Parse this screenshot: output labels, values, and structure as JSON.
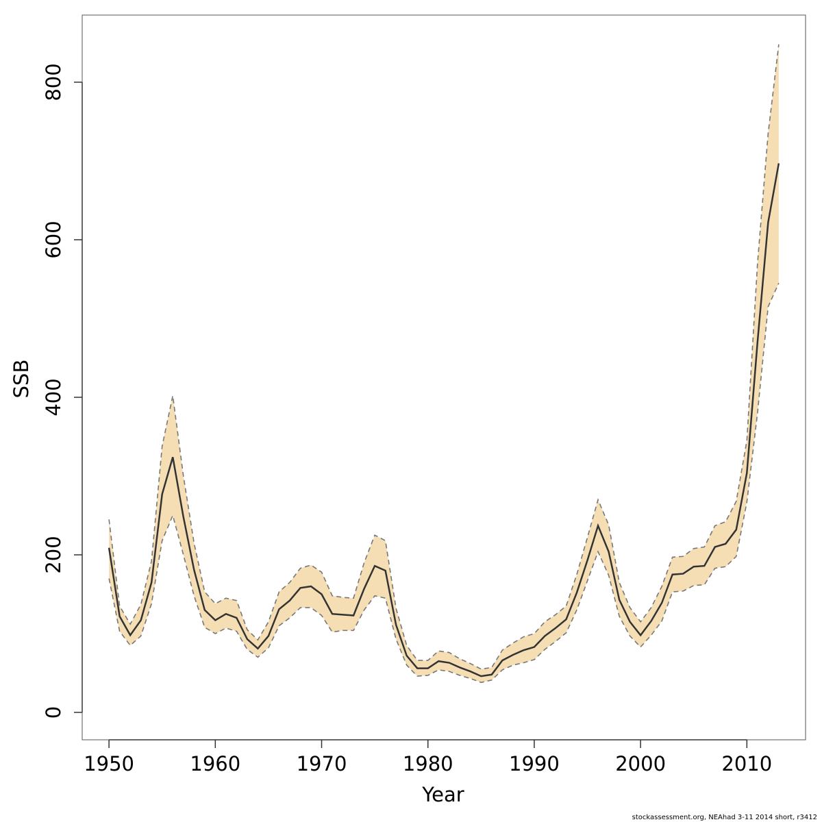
{
  "chart_data": {
    "type": "line",
    "xlabel": "Year",
    "ylabel": "SSB",
    "footer": "stockassessment.org, NEAhad 3-11 2014 short, r3412",
    "x": [
      1950,
      1951,
      1952,
      1953,
      1954,
      1955,
      1956,
      1957,
      1958,
      1959,
      1960,
      1961,
      1962,
      1963,
      1964,
      1965,
      1966,
      1967,
      1968,
      1969,
      1970,
      1971,
      1972,
      1973,
      1974,
      1975,
      1976,
      1977,
      1978,
      1979,
      1980,
      1981,
      1982,
      1983,
      1984,
      1985,
      1986,
      1987,
      1988,
      1989,
      1990,
      1991,
      1992,
      1993,
      1994,
      1995,
      1996,
      1997,
      1998,
      1999,
      2000,
      2001,
      2002,
      2003,
      2004,
      2005,
      2006,
      2007,
      2008,
      2009,
      2010,
      2011,
      2012,
      2013
    ],
    "series": [
      {
        "color": "#333333",
        "line_style": "solid",
        "values": [
          209,
          122,
          98,
          117,
          165,
          277,
          324,
          248,
          181,
          130,
          117,
          125,
          120,
          93,
          81,
          97,
          131,
          142,
          158,
          160,
          150,
          125,
          124,
          123,
          157,
          186,
          180,
          111,
          72,
          56,
          56,
          65,
          63,
          57,
          52,
          46,
          48,
          66,
          73,
          79,
          83,
          97,
          107,
          118,
          152,
          193,
          237,
          204,
          143,
          115,
          98,
          116,
          139,
          175,
          176,
          185,
          186,
          210,
          214,
          232,
          304,
          470,
          622,
          697
        ]
      },
      {
        "color": "#777777",
        "line_style": "dashed",
        "values": [
          170,
          103,
          85,
          97,
          138,
          218,
          250,
          200,
          148,
          108,
          100,
          107,
          103,
          80,
          70,
          82,
          110,
          120,
          133,
          133,
          123,
          102,
          104,
          104,
          130,
          148,
          145,
          93,
          60,
          46,
          47,
          54,
          52,
          47,
          43,
          38,
          41,
          54,
          60,
          63,
          67,
          80,
          90,
          101,
          130,
          167,
          204,
          174,
          122,
          97,
          83,
          98,
          116,
          153,
          154,
          161,
          162,
          183,
          185,
          198,
          267,
          380,
          515,
          545
        ]
      },
      {
        "color": "#777777",
        "line_style": "dashed",
        "values": [
          245,
          135,
          112,
          137,
          192,
          338,
          402,
          300,
          215,
          153,
          138,
          145,
          142,
          105,
          92,
          115,
          153,
          165,
          183,
          187,
          178,
          148,
          146,
          145,
          190,
          225,
          218,
          132,
          85,
          66,
          66,
          78,
          76,
          68,
          62,
          55,
          57,
          79,
          88,
          96,
          100,
          115,
          124,
          135,
          175,
          222,
          270,
          238,
          165,
          133,
          115,
          133,
          160,
          197,
          198,
          208,
          210,
          237,
          242,
          268,
          345,
          570,
          735,
          848
        ]
      }
    ],
    "band_color": "#f5deb3",
    "xlim": [
      1947.48,
      2015.52
    ],
    "xticks": [
      1950,
      1960,
      1970,
      1980,
      1990,
      2000,
      2010
    ],
    "ylim": [
      -34.8,
      885.2
    ],
    "yticks": [
      0,
      200,
      400,
      600,
      800
    ]
  }
}
